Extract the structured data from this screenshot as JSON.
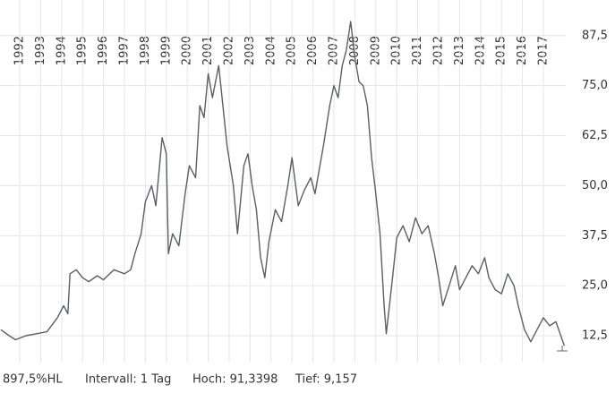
{
  "chart_data": {
    "type": "line",
    "footer": [
      "897,5%HL",
      "Intervall: 1 Tag",
      "Hoch: 91,3398",
      "Tief: 9,157"
    ],
    "x": [
      1991.1,
      1991.5,
      1991.8,
      1992.3,
      1992.8,
      1993.3,
      1993.8,
      1994.1,
      1994.3,
      1994.4,
      1994.7,
      1995.0,
      1995.3,
      1995.7,
      1996.0,
      1996.5,
      1997.0,
      1997.3,
      1997.5,
      1997.8,
      1998.0,
      1998.3,
      1998.5,
      1998.8,
      1999.0,
      1999.1,
      1999.3,
      1999.6,
      1999.9,
      2000.1,
      2000.4,
      2000.6,
      2000.8,
      2001.0,
      2001.2,
      2001.5,
      2001.7,
      2001.9,
      2002.2,
      2002.4,
      2002.7,
      2002.9,
      2003.1,
      2003.3,
      2003.5,
      2003.7,
      2003.9,
      2004.2,
      2004.5,
      2004.8,
      2005.0,
      2005.3,
      2005.6,
      2005.9,
      2006.1,
      2006.3,
      2006.5,
      2006.8,
      2007.0,
      2007.2,
      2007.4,
      2007.6,
      2007.8,
      2008.0,
      2008.2,
      2008.4,
      2008.6,
      2008.8,
      2009.0,
      2009.2,
      2009.4,
      2009.5,
      2009.8,
      2010.0,
      2010.3,
      2010.6,
      2010.9,
      2011.2,
      2011.5,
      2011.8,
      2012.0,
      2012.2,
      2012.5,
      2012.8,
      2013.0,
      2013.3,
      2013.6,
      2013.9,
      2014.2,
      2014.4,
      2014.7,
      2015.0,
      2015.3,
      2015.6,
      2015.8,
      2016.1,
      2016.4,
      2016.7,
      2017.0,
      2017.3,
      2017.6,
      2017.8,
      2018.0
    ],
    "series": [
      {
        "color": "#5a5f66",
        "values": [
          14,
          12.5,
          11.5,
          12.5,
          13,
          13.5,
          17,
          20,
          18,
          28,
          29,
          27,
          26,
          27.5,
          26.5,
          29,
          28,
          29,
          33,
          38,
          46,
          50,
          45,
          62,
          58,
          33,
          38,
          35,
          48,
          55,
          52,
          70,
          67,
          78,
          72,
          80,
          70,
          60,
          50,
          38,
          55,
          58,
          50,
          44,
          32,
          27,
          36,
          44,
          41,
          50,
          57,
          45,
          49,
          52,
          48,
          54,
          60,
          70,
          75,
          72,
          80,
          84,
          91,
          82,
          76,
          75,
          70,
          57,
          48,
          38,
          20,
          13,
          27,
          37,
          40,
          36,
          42,
          38,
          40,
          33,
          27,
          20,
          25,
          30,
          24,
          27,
          30,
          28,
          32,
          27,
          24,
          23,
          28,
          25,
          20,
          14,
          11,
          14,
          17,
          15,
          16,
          13,
          10
        ]
      }
    ],
    "xlim": [
      1991.06,
      2018.07
    ],
    "xticks": [
      1992,
      1993,
      1994,
      1995,
      1996,
      1997,
      1998,
      1999,
      2000,
      2001,
      2002,
      2003,
      2004,
      2005,
      2006,
      2007,
      2008,
      2009,
      2010,
      2011,
      2012,
      2013,
      2014,
      2015,
      2016,
      2017
    ],
    "ylim": [
      5.8,
      96.4
    ],
    "yticks": [
      {
        "value": 12.5,
        "label": "12,5"
      },
      {
        "value": 25,
        "label": "25,0"
      },
      {
        "value": 37.5,
        "label": "37,5"
      },
      {
        "value": 50,
        "label": "50,0"
      },
      {
        "value": 62.5,
        "label": "62,5"
      },
      {
        "value": 75,
        "label": "75,0"
      },
      {
        "value": 87.5,
        "label": "87,5"
      }
    ],
    "grid": true
  }
}
